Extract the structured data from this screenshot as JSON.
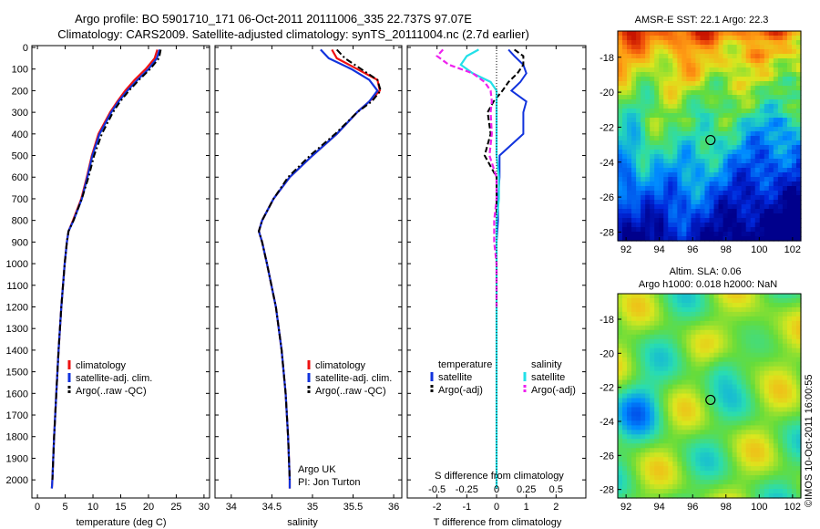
{
  "header": {
    "line1": "Argo profile: BO 5901710_171 06-Oct-2011 20111006_335 22.737S 97.07E",
    "line2": "Climatology: CARS2009. Satellite-adjusted climatology: synTS_20111004.nc (2.7d earlier)"
  },
  "colors": {
    "climatology": "#ee1111",
    "satellite": "#1133dd",
    "argo": "#000000",
    "salinity_sat": "#22e0e8",
    "salinity_argo": "#ee22ee"
  },
  "chart_data": [
    {
      "id": "temperature",
      "type": "line",
      "xlabel": "temperature (deg C)",
      "ylabel": "",
      "xlim": [
        -1,
        31
      ],
      "ylim": [
        2050,
        0
      ],
      "xticks": [
        "0",
        "5",
        "10",
        "15",
        "20",
        "25",
        "30"
      ],
      "yticks": [
        "0",
        "100",
        "200",
        "300",
        "400",
        "500",
        "600",
        "700",
        "800",
        "900",
        "1000",
        "1100",
        "1200",
        "1300",
        "1400",
        "1500",
        "1600",
        "1700",
        "1800",
        "1900",
        "2000"
      ],
      "legend": [
        "climatology",
        "satellite-adj. clim.",
        "Argo(..raw -QC)"
      ],
      "series": [
        {
          "name": "climatology",
          "depth": [
            10,
            50,
            100,
            150,
            200,
            250,
            300,
            400,
            500,
            600,
            700,
            800,
            850,
            900,
            1000,
            1200,
            1400,
            1600,
            1800,
            2000,
            2040
          ],
          "values": [
            21.6,
            21.1,
            19.5,
            17.5,
            15.8,
            14.4,
            13.1,
            11.0,
            9.8,
            8.9,
            7.9,
            6.4,
            5.6,
            5.3,
            4.9,
            4.3,
            3.8,
            3.4,
            3.0,
            2.7,
            2.6
          ]
        },
        {
          "name": "satellite-adj. clim.",
          "depth": [
            10,
            50,
            100,
            150,
            200,
            250,
            300,
            400,
            500,
            600,
            700,
            800,
            850,
            900,
            1000,
            1200,
            1400,
            1600,
            1800,
            2000,
            2040
          ],
          "values": [
            22.0,
            21.5,
            20.0,
            18.0,
            16.2,
            14.6,
            13.3,
            11.2,
            9.9,
            9.0,
            8.0,
            6.5,
            5.6,
            5.3,
            4.9,
            4.3,
            3.8,
            3.4,
            3.0,
            2.7,
            2.6
          ]
        },
        {
          "name": "Argo(..raw -QC)",
          "depth": [
            10,
            50,
            100,
            150,
            200,
            250,
            300,
            400,
            500,
            600,
            700,
            800,
            850,
            900,
            1000,
            1200,
            1400,
            1600,
            1800,
            2000
          ],
          "values": [
            22.2,
            21.9,
            20.3,
            18.3,
            16.5,
            14.9,
            13.6,
            11.6,
            10.2,
            9.2,
            8.0,
            6.5,
            5.6,
            5.3,
            4.9,
            4.3,
            3.8,
            3.4,
            3.0,
            2.7
          ]
        }
      ]
    },
    {
      "id": "salinity",
      "type": "line",
      "xlabel": "salinity",
      "ylabel": "",
      "xlim": [
        33.8,
        36.1
      ],
      "ylim": [
        2050,
        0
      ],
      "xticks": [
        "34",
        "34.5",
        "35",
        "35.5",
        "36"
      ],
      "legend": [
        "climatology",
        "satellite-adj. clim.",
        "Argo(..raw -QC)"
      ],
      "annotation": [
        "Argo UK",
        "PI: Jon Turton"
      ],
      "series": [
        {
          "name": "climatology",
          "depth": [
            10,
            50,
            100,
            150,
            200,
            250,
            300,
            400,
            500,
            600,
            700,
            800,
            850,
            900,
            1000,
            1200,
            1400,
            1600,
            1800,
            2000,
            2040
          ],
          "values": [
            35.24,
            35.3,
            35.55,
            35.8,
            35.83,
            35.7,
            35.55,
            35.3,
            35.0,
            34.72,
            34.52,
            34.38,
            34.34,
            34.38,
            34.44,
            34.55,
            34.62,
            34.67,
            34.7,
            34.72,
            34.72
          ]
        },
        {
          "name": "satellite-adj. clim.",
          "depth": [
            10,
            50,
            100,
            150,
            200,
            250,
            300,
            400,
            500,
            600,
            700,
            800,
            850,
            900,
            1000,
            1200,
            1400,
            1600,
            1800,
            2000,
            2040
          ],
          "values": [
            35.1,
            35.2,
            35.48,
            35.7,
            35.8,
            35.7,
            35.55,
            35.3,
            35.0,
            34.72,
            34.52,
            34.38,
            34.34,
            34.38,
            34.44,
            34.55,
            34.62,
            34.67,
            34.7,
            34.72,
            34.72
          ]
        },
        {
          "name": "Argo(..raw -QC)",
          "depth": [
            10,
            50,
            100,
            150,
            200,
            250,
            300,
            400,
            500,
            600,
            700,
            800,
            850,
            900,
            1000,
            1200,
            1400,
            1600,
            1800,
            2000
          ],
          "values": [
            35.3,
            35.4,
            35.6,
            35.8,
            35.84,
            35.73,
            35.55,
            35.28,
            34.97,
            34.7,
            34.52,
            34.38,
            34.34,
            34.38,
            34.44,
            34.55,
            34.62,
            34.67,
            34.7,
            34.72
          ]
        }
      ]
    },
    {
      "id": "difference",
      "type": "line",
      "xlabel": "T difference from climatology",
      "xlabel_top": "S difference from climatology",
      "xlim": [
        -3,
        3
      ],
      "ylim": [
        2050,
        0
      ],
      "xticks": [
        "-2",
        "-1",
        "0",
        "1",
        "2"
      ],
      "xticks_top": [
        "-0.5",
        "-0.25",
        "0",
        "0.25",
        "0.5"
      ],
      "legend_temperature": [
        "temperature",
        "satellite",
        "Argo(-adj)"
      ],
      "legend_salinity": [
        "salinity",
        "satellite",
        "Argo(-adj)"
      ],
      "series": [
        {
          "name": "temperature satellite",
          "depth": [
            10,
            40,
            80,
            120,
            160,
            200,
            250,
            300,
            400,
            500,
            600,
            700,
            800,
            900,
            1000,
            1200,
            1400,
            1600,
            1800,
            2000,
            2040
          ],
          "values": [
            0.4,
            0.6,
            0.9,
            1.0,
            0.8,
            0.5,
            1.0,
            0.9,
            0.9,
            0.1,
            0.1,
            0.05,
            0.05,
            0,
            0,
            0,
            0,
            0,
            0,
            0,
            0
          ]
        },
        {
          "name": "temperature Argo(-adj)",
          "depth": [
            10,
            40,
            80,
            120,
            160,
            200,
            250,
            300,
            400,
            500,
            600,
            700,
            800,
            900,
            1000,
            1200,
            1400,
            1600,
            1800,
            2000
          ],
          "values": [
            0.6,
            0.9,
            0.9,
            0.7,
            0.4,
            0.2,
            -0.1,
            -0.3,
            -0.2,
            -0.4,
            0.0,
            0.0,
            0.0,
            0,
            0,
            0,
            0,
            0,
            0,
            0
          ]
        },
        {
          "name": "salinity satellite",
          "depth": [
            10,
            40,
            80,
            120,
            160,
            200,
            250,
            300,
            400,
            500,
            600,
            700,
            800,
            900,
            1000,
            1200,
            1400,
            1600,
            1800,
            2000,
            2040
          ],
          "values": [
            -0.15,
            -0.25,
            -0.3,
            -0.2,
            -0.05,
            0.0,
            0.0,
            0.0,
            0.0,
            0.0,
            0.02,
            0.02,
            0.0,
            0,
            0,
            0,
            0,
            0,
            0,
            0,
            0
          ]
        },
        {
          "name": "salinity Argo(-adj)",
          "depth": [
            10,
            40,
            80,
            120,
            160,
            200,
            250,
            300,
            400,
            500,
            600,
            700,
            800,
            900,
            1000,
            1200
          ],
          "values": [
            -0.45,
            -0.5,
            -0.4,
            -0.2,
            -0.1,
            -0.05,
            -0.04,
            -0.05,
            -0.04,
            -0.06,
            0.0,
            0.0,
            -0.02,
            -0.02,
            0.0,
            0.0
          ]
        }
      ]
    },
    {
      "id": "sst_map",
      "type": "heatmap",
      "title": "AMSR-E SST: 22.1  Argo: 22.3",
      "xlim": [
        91.5,
        102.5
      ],
      "ylim": [
        -28.5,
        -16.5
      ],
      "xticks": [
        "92",
        "94",
        "96",
        "98",
        "100",
        "102"
      ],
      "yticks": [
        "-18",
        "-20",
        "-22",
        "-24",
        "-26",
        "-28"
      ],
      "argo_position": {
        "lon": 97.07,
        "lat": -22.737
      }
    },
    {
      "id": "sla_map",
      "type": "heatmap",
      "title_line1": "Altim. SLA: 0.06",
      "title_line2": "Argo h1000: 0.018  h2000: NaN",
      "xlim": [
        91.5,
        102.5
      ],
      "ylim": [
        -28.5,
        -16.5
      ],
      "xticks": [
        "92",
        "94",
        "96",
        "98",
        "100",
        "102"
      ],
      "yticks": [
        "-18",
        "-20",
        "-22",
        "-24",
        "-26",
        "-28"
      ],
      "argo_position": {
        "lon": 97.07,
        "lat": -22.737
      }
    }
  ],
  "side_label": "©IMOS 10-Oct-2011 16:00:55"
}
